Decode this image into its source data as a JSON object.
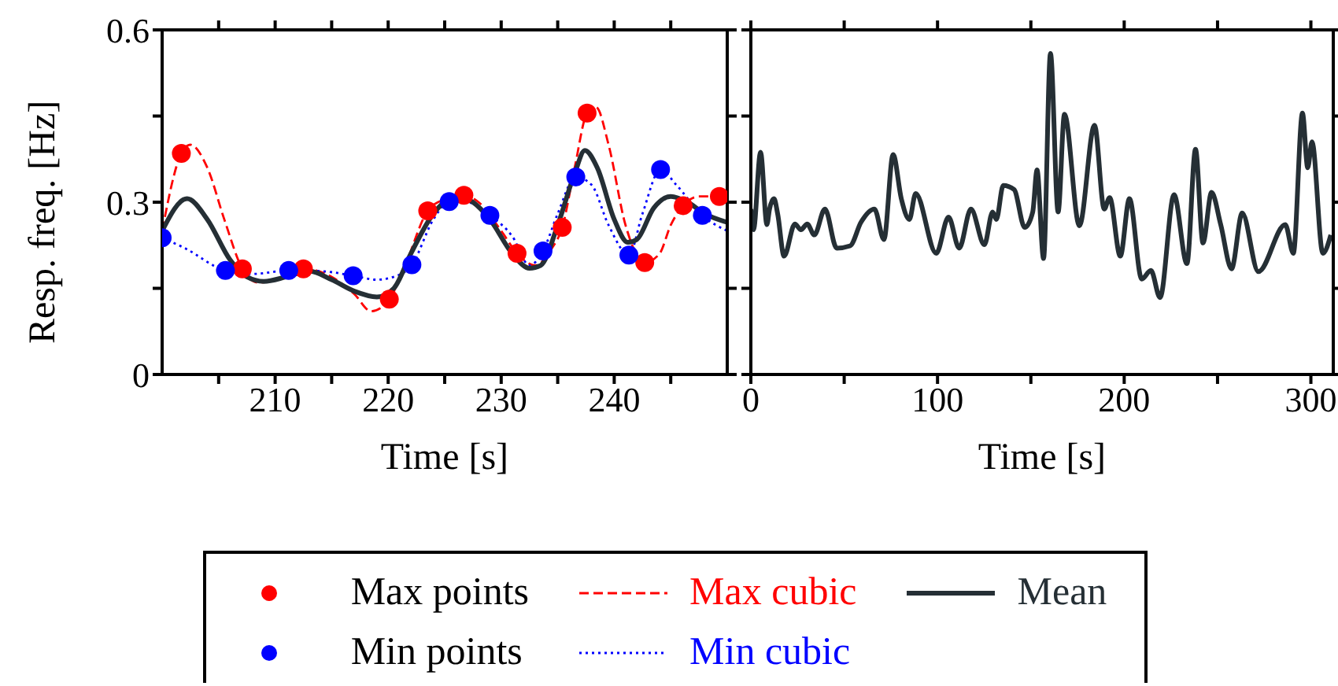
{
  "chart_data": [
    {
      "type": "line",
      "xlabel": "Time [s]",
      "ylabel": "Resp. freq. [Hz]",
      "xlim": [
        200,
        250
      ],
      "xticks": [
        {
          "value": 205,
          "label": null
        },
        210,
        {
          "value": 215,
          "label": null
        },
        220,
        {
          "value": 225,
          "label": null
        },
        230,
        {
          "value": 235,
          "label": null
        },
        240,
        {
          "value": 245,
          "label": null
        }
      ],
      "ylim": [
        0,
        0.6
      ],
      "yticks": [
        0,
        {
          "value": 0.15,
          "label": null
        },
        0.3,
        {
          "value": 0.45,
          "label": null
        },
        0.6
      ],
      "legend": "bottom",
      "series": [
        {
          "name": "Max points",
          "type": "scatter",
          "marker": "circle",
          "color": "#ff0000",
          "x": [
            201.7,
            207.1,
            212.5,
            220.1,
            223.5,
            226.7,
            231.4,
            235.4,
            237.6,
            242.7,
            246.1,
            249.3
          ],
          "values": [
            0.385,
            0.184,
            0.184,
            0.131,
            0.285,
            0.312,
            0.211,
            0.256,
            0.455,
            0.195,
            0.294,
            0.31
          ]
        },
        {
          "name": "Min points",
          "type": "scatter",
          "marker": "circle",
          "color": "#0000ff",
          "x": [
            200,
            205.6,
            211.2,
            216.9,
            222.1,
            225.4,
            229,
            233.7,
            236.6,
            241.3,
            244.1,
            247.8
          ],
          "values": [
            0.238,
            0.181,
            0.181,
            0.172,
            0.191,
            0.301,
            0.277,
            0.215,
            0.344,
            0.208,
            0.357,
            0.277
          ]
        },
        {
          "name": "Max cubic",
          "line_style": "dashed",
          "color": "#ff0000",
          "x": [
            200,
            201.7,
            202.5,
            204,
            205.5,
            207.1,
            208.5,
            210,
            212.5,
            215,
            217,
            218.5,
            220.1,
            221.5,
            223.5,
            225,
            226.7,
            228,
            230,
            231.4,
            233,
            234.5,
            235.4,
            236.5,
            237.6,
            238.4,
            239.5,
            241,
            242.7,
            244,
            245,
            246.1,
            247.5,
            249.3,
            250
          ],
          "values": [
            0.25,
            0.385,
            0.4,
            0.36,
            0.27,
            0.184,
            0.16,
            0.165,
            0.184,
            0.17,
            0.14,
            0.11,
            0.131,
            0.19,
            0.285,
            0.305,
            0.312,
            0.3,
            0.25,
            0.211,
            0.19,
            0.22,
            0.256,
            0.36,
            0.455,
            0.465,
            0.4,
            0.26,
            0.195,
            0.21,
            0.26,
            0.294,
            0.31,
            0.31,
            0.31
          ]
        },
        {
          "name": "Min cubic",
          "line_style": "dotted",
          "color": "#0000ff",
          "x": [
            200,
            202,
            205.6,
            208,
            211.2,
            214,
            216.9,
            219,
            220.5,
            222.1,
            224,
            225.4,
            227,
            229,
            231,
            232.5,
            233.7,
            235,
            236.6,
            238,
            239.5,
            241.3,
            242.5,
            244.1,
            245.5,
            247.8,
            250
          ],
          "values": [
            0.238,
            0.22,
            0.181,
            0.175,
            0.181,
            0.18,
            0.172,
            0.165,
            0.17,
            0.191,
            0.27,
            0.301,
            0.3,
            0.277,
            0.24,
            0.19,
            0.215,
            0.28,
            0.344,
            0.33,
            0.26,
            0.208,
            0.28,
            0.357,
            0.33,
            0.277,
            0.25
          ]
        },
        {
          "name": "Mean",
          "line_style": "solid",
          "color": "#252f35",
          "x": [
            200,
            202.2,
            204,
            206,
            207.5,
            209,
            211,
            213,
            215,
            217,
            219,
            220.5,
            222,
            224,
            226,
            227.5,
            229,
            231,
            232.5,
            233.5,
            235,
            236.5,
            237.4,
            238.5,
            240,
            241.2,
            242,
            243.5,
            245,
            246.5,
            248,
            250
          ],
          "values": [
            0.25,
            0.306,
            0.27,
            0.2,
            0.17,
            0.162,
            0.17,
            0.18,
            0.165,
            0.145,
            0.135,
            0.15,
            0.21,
            0.28,
            0.31,
            0.3,
            0.27,
            0.21,
            0.185,
            0.19,
            0.26,
            0.35,
            0.39,
            0.36,
            0.27,
            0.23,
            0.235,
            0.29,
            0.31,
            0.3,
            0.28,
            0.265
          ]
        }
      ]
    },
    {
      "type": "line",
      "xlabel": "Time [s]",
      "xlim": [
        0,
        312
      ],
      "xticks": [
        0,
        {
          "value": 50,
          "label": null
        },
        100,
        {
          "value": 150,
          "label": null
        },
        200,
        {
          "value": 250,
          "label": null
        },
        300
      ],
      "ylim": [
        0,
        0.6
      ],
      "yticks": [
        0,
        0.15,
        0.3,
        0.45,
        0.6
      ],
      "tick_labels": "x",
      "series": [
        {
          "line_style": "solid",
          "color": "#252f35",
          "x": [
            0,
            1.4,
            5.2,
            8.6,
            10,
            12.4,
            14.4,
            17.8,
            23.6,
            26.8,
            30.2,
            34,
            39.7,
            46,
            53.2,
            59,
            66.2,
            71.3,
            76.2,
            80.6,
            84.9,
            88.3,
            99.3,
            105.9,
            111.6,
            117.9,
            125.1,
            129.5,
            131.5,
            135.2,
            141,
            146.7,
            151,
            153.3,
            156.8,
            160.5,
            164.6,
            168,
            176,
            184.1,
            189.3,
            192.2,
            197.9,
            202.8,
            209.4,
            214.3,
            219.2,
            226.7,
            233.6,
            238.2,
            242.2,
            246.8,
            251.7,
            257.5,
            263.2,
            271.9,
            286.3,
            290.6,
            295.5,
            298.3,
            300.6,
            306.4,
            310.7
          ],
          "values": [
            0.288,
            0.252,
            0.387,
            0.261,
            0.288,
            0.306,
            0.279,
            0.206,
            0.262,
            0.252,
            0.262,
            0.243,
            0.288,
            0.22,
            0.224,
            0.265,
            0.288,
            0.235,
            0.383,
            0.306,
            0.27,
            0.315,
            0.211,
            0.274,
            0.22,
            0.288,
            0.226,
            0.283,
            0.27,
            0.329,
            0.322,
            0.256,
            0.283,
            0.356,
            0.202,
            0.559,
            0.283,
            0.453,
            0.259,
            0.434,
            0.288,
            0.308,
            0.206,
            0.306,
            0.166,
            0.181,
            0.134,
            0.313,
            0.193,
            0.392,
            0.229,
            0.317,
            0.261,
            0.184,
            0.281,
            0.179,
            0.261,
            0.211,
            0.455,
            0.36,
            0.405,
            0.211,
            0.243
          ]
        }
      ]
    }
  ]
}
